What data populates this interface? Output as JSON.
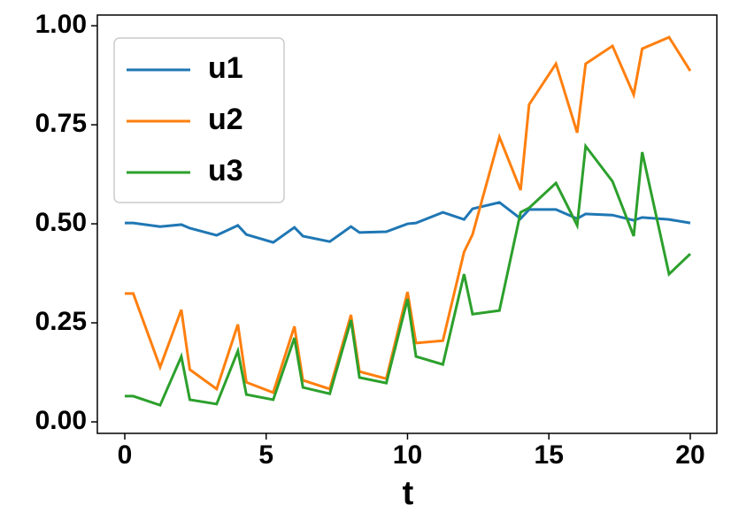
{
  "chart_data": {
    "type": "line",
    "x_label": "t",
    "x": [
      0,
      0.3,
      1.25,
      2,
      2.3,
      3.25,
      4,
      4.3,
      5.25,
      6,
      6.3,
      7.25,
      8,
      8.3,
      9.25,
      10,
      10.3,
      11.25,
      12,
      12.3,
      13.25,
      14,
      14.3,
      15.25,
      16,
      16.3,
      17.25,
      18,
      18.3,
      19.25,
      20
    ],
    "series": [
      {
        "name": "u1",
        "color": "#1f77b4",
        "values": [
          0.502,
          0.502,
          0.493,
          0.498,
          0.489,
          0.471,
          0.496,
          0.473,
          0.453,
          0.491,
          0.469,
          0.455,
          0.493,
          0.478,
          0.48,
          0.5,
          0.502,
          0.529,
          0.511,
          0.538,
          0.554,
          0.513,
          0.536,
          0.536,
          0.513,
          0.525,
          0.522,
          0.509,
          0.516,
          0.511,
          0.502
        ]
      },
      {
        "name": "u2",
        "color": "#ff7f0e",
        "values": [
          0.324,
          0.324,
          0.138,
          0.283,
          0.132,
          0.083,
          0.246,
          0.1,
          0.074,
          0.241,
          0.105,
          0.083,
          0.27,
          0.127,
          0.109,
          0.328,
          0.199,
          0.205,
          0.429,
          0.473,
          0.719,
          0.585,
          0.801,
          0.904,
          0.73,
          0.904,
          0.949,
          0.826,
          0.942,
          0.971,
          0.886
        ]
      },
      {
        "name": "u3",
        "color": "#2ca02c",
        "values": [
          0.065,
          0.065,
          0.042,
          0.165,
          0.056,
          0.045,
          0.179,
          0.069,
          0.056,
          0.212,
          0.087,
          0.071,
          0.257,
          0.112,
          0.098,
          0.31,
          0.165,
          0.145,
          0.373,
          0.272,
          0.281,
          0.529,
          0.54,
          0.603,
          0.496,
          0.696,
          0.607,
          0.469,
          0.681,
          0.373,
          0.424
        ]
      }
    ],
    "xlim": [
      -0.97,
      20.94
    ],
    "ylim": [
      -0.029,
      1.027
    ],
    "xticks": [
      0,
      5,
      10,
      15,
      20
    ],
    "yticks": [
      {
        "value": 0,
        "label": "0.00"
      },
      {
        "value": 0.25,
        "label": "0.25"
      },
      {
        "value": 0.5,
        "label": "0.50"
      },
      {
        "value": 0.75,
        "label": "0.75"
      },
      {
        "value": 1,
        "label": "1.00"
      }
    ],
    "legend": "upper left"
  }
}
